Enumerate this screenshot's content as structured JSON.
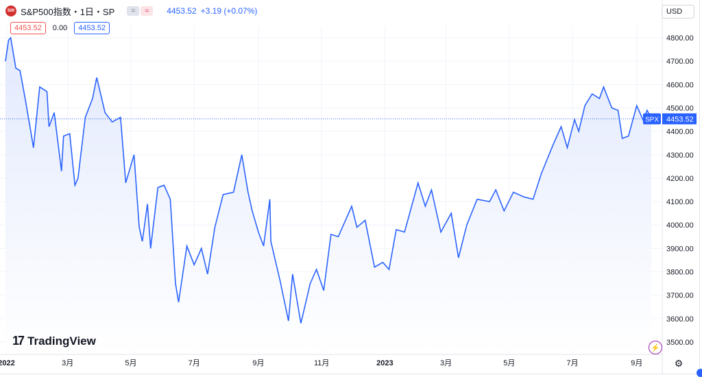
{
  "header": {
    "symbol_icon_text": "500",
    "title": "S&P500指数・1日・SP",
    "pill_a": "=",
    "pill_b": "≈",
    "price": "4453.52",
    "change": "+3.19 (+0.07%)"
  },
  "ohlc_row": {
    "bid": "4453.52",
    "spread": "0.00",
    "ask": "4453.52"
  },
  "currency": "USD",
  "branding": {
    "logo_mark": "17",
    "logo_text": "TradingView"
  },
  "colors": {
    "line": "#2962ff",
    "fill_top": "#dfe7fd",
    "fill_bottom": "#ffffff",
    "price_tag": "#2962ff"
  },
  "icons": {
    "bolt": "lightning-icon",
    "settings": "gear-icon"
  },
  "chart_data": {
    "type": "area",
    "title": "",
    "ylim": [
      3450,
      4850
    ],
    "y_ticks": [
      3500,
      3600,
      3700,
      3800,
      3900,
      4000,
      4100,
      4200,
      4300,
      4400,
      4500,
      4600,
      4700,
      4800
    ],
    "y_tick_labels": [
      "3500.00",
      "3600.00",
      "3700.00",
      "3800.00",
      "3900.00",
      "4000.00",
      "4100.00",
      "4200.00",
      "4300.00",
      "4400.00",
      "4500.00",
      "4600.00",
      "4700.00",
      "4800.00"
    ],
    "x_labels": [
      "2022",
      "3月",
      "5月",
      "7月",
      "9月",
      "11月",
      "2023",
      "3月",
      "5月",
      "7月",
      "9月"
    ],
    "x_label_dates": [
      "2022-01",
      "2022-03",
      "2022-05",
      "2022-07",
      "2022-09",
      "2022-11",
      "2023-01",
      "2023-03",
      "2023-05",
      "2023-07",
      "2023-09"
    ],
    "last_value_label": "SPX",
    "last_value": 4453.52,
    "series": [
      {
        "values": [
          {
            "date": "2021-12-31",
            "y": 4700
          },
          {
            "date": "2022-01-03",
            "y": 4790
          },
          {
            "date": "2022-01-05",
            "y": 4800
          },
          {
            "date": "2022-01-10",
            "y": 4670
          },
          {
            "date": "2022-01-14",
            "y": 4660
          },
          {
            "date": "2022-01-19",
            "y": 4540
          },
          {
            "date": "2022-01-24",
            "y": 4410
          },
          {
            "date": "2022-01-27",
            "y": 4330
          },
          {
            "date": "2022-02-02",
            "y": 4590
          },
          {
            "date": "2022-02-09",
            "y": 4570
          },
          {
            "date": "2022-02-11",
            "y": 4420
          },
          {
            "date": "2022-02-16",
            "y": 4480
          },
          {
            "date": "2022-02-23",
            "y": 4230
          },
          {
            "date": "2022-02-25",
            "y": 4380
          },
          {
            "date": "2022-03-03",
            "y": 4390
          },
          {
            "date": "2022-03-08",
            "y": 4170
          },
          {
            "date": "2022-03-11",
            "y": 4200
          },
          {
            "date": "2022-03-18",
            "y": 4460
          },
          {
            "date": "2022-03-25",
            "y": 4540
          },
          {
            "date": "2022-03-29",
            "y": 4630
          },
          {
            "date": "2022-04-06",
            "y": 4480
          },
          {
            "date": "2022-04-13",
            "y": 4440
          },
          {
            "date": "2022-04-21",
            "y": 4460
          },
          {
            "date": "2022-04-26",
            "y": 4180
          },
          {
            "date": "2022-05-04",
            "y": 4300
          },
          {
            "date": "2022-05-09",
            "y": 3990
          },
          {
            "date": "2022-05-12",
            "y": 3930
          },
          {
            "date": "2022-05-17",
            "y": 4090
          },
          {
            "date": "2022-05-20",
            "y": 3900
          },
          {
            "date": "2022-05-27",
            "y": 4160
          },
          {
            "date": "2022-06-02",
            "y": 4170
          },
          {
            "date": "2022-06-08",
            "y": 4110
          },
          {
            "date": "2022-06-13",
            "y": 3750
          },
          {
            "date": "2022-06-16",
            "y": 3670
          },
          {
            "date": "2022-06-24",
            "y": 3910
          },
          {
            "date": "2022-07-01",
            "y": 3830
          },
          {
            "date": "2022-07-08",
            "y": 3900
          },
          {
            "date": "2022-07-14",
            "y": 3790
          },
          {
            "date": "2022-07-21",
            "y": 3990
          },
          {
            "date": "2022-07-29",
            "y": 4130
          },
          {
            "date": "2022-08-08",
            "y": 4140
          },
          {
            "date": "2022-08-16",
            "y": 4300
          },
          {
            "date": "2022-08-22",
            "y": 4140
          },
          {
            "date": "2022-08-26",
            "y": 4060
          },
          {
            "date": "2022-09-01",
            "y": 3970
          },
          {
            "date": "2022-09-06",
            "y": 3910
          },
          {
            "date": "2022-09-12",
            "y": 4110
          },
          {
            "date": "2022-09-13",
            "y": 3930
          },
          {
            "date": "2022-09-22",
            "y": 3760
          },
          {
            "date": "2022-09-30",
            "y": 3590
          },
          {
            "date": "2022-10-04",
            "y": 3790
          },
          {
            "date": "2022-10-12",
            "y": 3580
          },
          {
            "date": "2022-10-21",
            "y": 3750
          },
          {
            "date": "2022-10-27",
            "y": 3810
          },
          {
            "date": "2022-11-03",
            "y": 3720
          },
          {
            "date": "2022-11-10",
            "y": 3960
          },
          {
            "date": "2022-11-17",
            "y": 3950
          },
          {
            "date": "2022-11-30",
            "y": 4080
          },
          {
            "date": "2022-12-05",
            "y": 3990
          },
          {
            "date": "2022-12-13",
            "y": 4020
          },
          {
            "date": "2022-12-22",
            "y": 3820
          },
          {
            "date": "2022-12-30",
            "y": 3840
          },
          {
            "date": "2023-01-05",
            "y": 3810
          },
          {
            "date": "2023-01-12",
            "y": 3980
          },
          {
            "date": "2023-01-20",
            "y": 3970
          },
          {
            "date": "2023-02-02",
            "y": 4180
          },
          {
            "date": "2023-02-09",
            "y": 4080
          },
          {
            "date": "2023-02-15",
            "y": 4150
          },
          {
            "date": "2023-02-24",
            "y": 3970
          },
          {
            "date": "2023-03-06",
            "y": 4050
          },
          {
            "date": "2023-03-13",
            "y": 3860
          },
          {
            "date": "2023-03-21",
            "y": 4000
          },
          {
            "date": "2023-03-31",
            "y": 4110
          },
          {
            "date": "2023-04-12",
            "y": 4100
          },
          {
            "date": "2023-04-18",
            "y": 4150
          },
          {
            "date": "2023-04-26",
            "y": 4060
          },
          {
            "date": "2023-05-05",
            "y": 4140
          },
          {
            "date": "2023-05-15",
            "y": 4120
          },
          {
            "date": "2023-05-24",
            "y": 4110
          },
          {
            "date": "2023-06-01",
            "y": 4220
          },
          {
            "date": "2023-06-12",
            "y": 4340
          },
          {
            "date": "2023-06-20",
            "y": 4420
          },
          {
            "date": "2023-06-26",
            "y": 4330
          },
          {
            "date": "2023-07-03",
            "y": 4450
          },
          {
            "date": "2023-07-07",
            "y": 4400
          },
          {
            "date": "2023-07-13",
            "y": 4510
          },
          {
            "date": "2023-07-20",
            "y": 4560
          },
          {
            "date": "2023-07-27",
            "y": 4540
          },
          {
            "date": "2023-07-31",
            "y": 4590
          },
          {
            "date": "2023-08-08",
            "y": 4500
          },
          {
            "date": "2023-08-14",
            "y": 4490
          },
          {
            "date": "2023-08-18",
            "y": 4370
          },
          {
            "date": "2023-08-24",
            "y": 4380
          },
          {
            "date": "2023-09-01",
            "y": 4510
          },
          {
            "date": "2023-09-07",
            "y": 4450
          },
          {
            "date": "2023-09-11",
            "y": 4490
          },
          {
            "date": "2023-09-15",
            "y": 4453.52
          }
        ]
      }
    ]
  }
}
